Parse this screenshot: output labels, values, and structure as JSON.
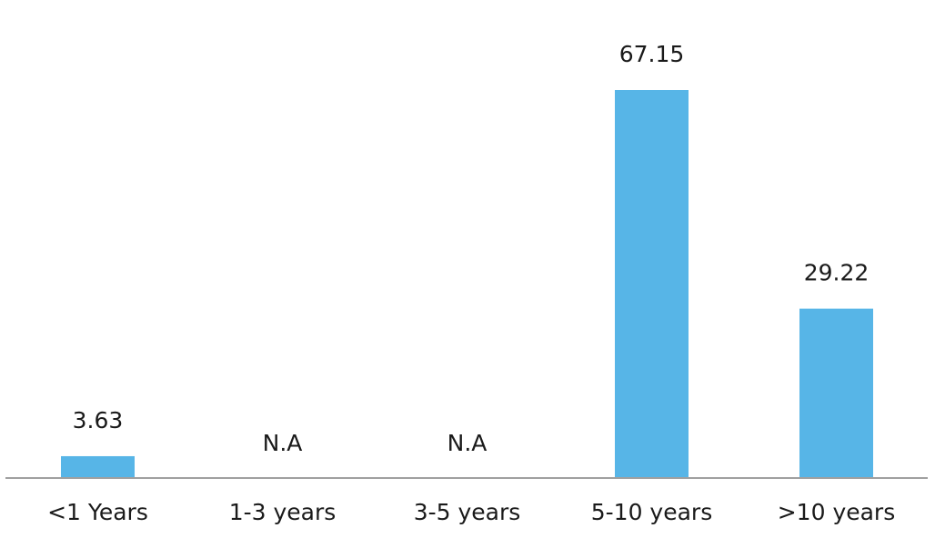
{
  "chart_data": {
    "type": "bar",
    "categories": [
      "<1 Years",
      "1-3 years",
      "3-5 years",
      "5-10 years",
      ">10 years"
    ],
    "values": [
      3.63,
      null,
      null,
      67.15,
      29.22
    ],
    "value_labels": [
      "3.63",
      "N.A",
      "N.A",
      "67.15",
      "29.22"
    ],
    "color": "#57b5e7"
  }
}
